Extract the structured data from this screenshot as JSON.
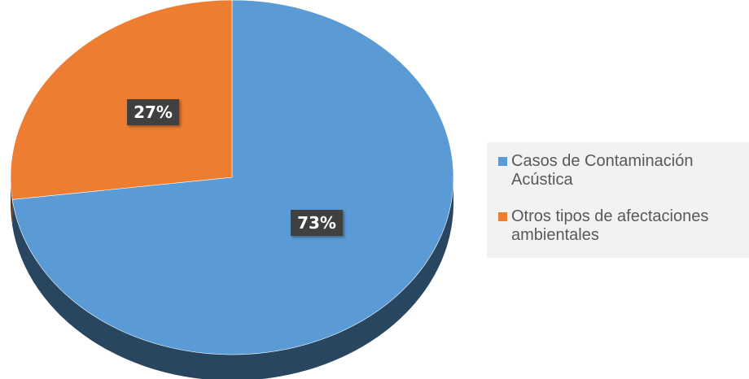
{
  "chart_data": {
    "type": "pie",
    "series": [
      {
        "name": "Casos de Contaminación Acústica",
        "value": 73,
        "label": "73%",
        "color": "#5b9bd5"
      },
      {
        "name": "Otros tipos de afectaciones ambientales",
        "value": 27,
        "label": "27%",
        "color": "#ed7d31"
      }
    ],
    "legend_position": "right",
    "style": "3d"
  }
}
